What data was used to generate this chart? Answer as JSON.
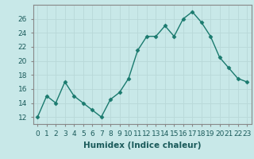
{
  "x": [
    0,
    1,
    2,
    3,
    4,
    5,
    6,
    7,
    8,
    9,
    10,
    11,
    12,
    13,
    14,
    15,
    16,
    17,
    18,
    19,
    20,
    21,
    22,
    23
  ],
  "y": [
    12,
    15,
    14,
    17,
    15,
    14,
    13,
    12,
    14.5,
    15.5,
    17.5,
    21.5,
    23.5,
    23.5,
    25,
    23.5,
    26,
    27,
    25.5,
    23.5,
    20.5,
    19,
    17.5,
    17
  ],
  "line_color": "#1a7a6e",
  "marker": "D",
  "marker_size": 2.5,
  "bg_color": "#c8e8e8",
  "grid_color": "#b8d8d8",
  "xlabel": "Humidex (Indice chaleur)",
  "ylim": [
    11,
    28
  ],
  "yticks": [
    12,
    14,
    16,
    18,
    20,
    22,
    24,
    26
  ],
  "xticks": [
    0,
    1,
    2,
    3,
    4,
    5,
    6,
    7,
    8,
    9,
    10,
    11,
    12,
    13,
    14,
    15,
    16,
    17,
    18,
    19,
    20,
    21,
    22,
    23
  ],
  "xlabel_fontsize": 7.5,
  "tick_fontsize": 6.5,
  "line_width": 1.0
}
